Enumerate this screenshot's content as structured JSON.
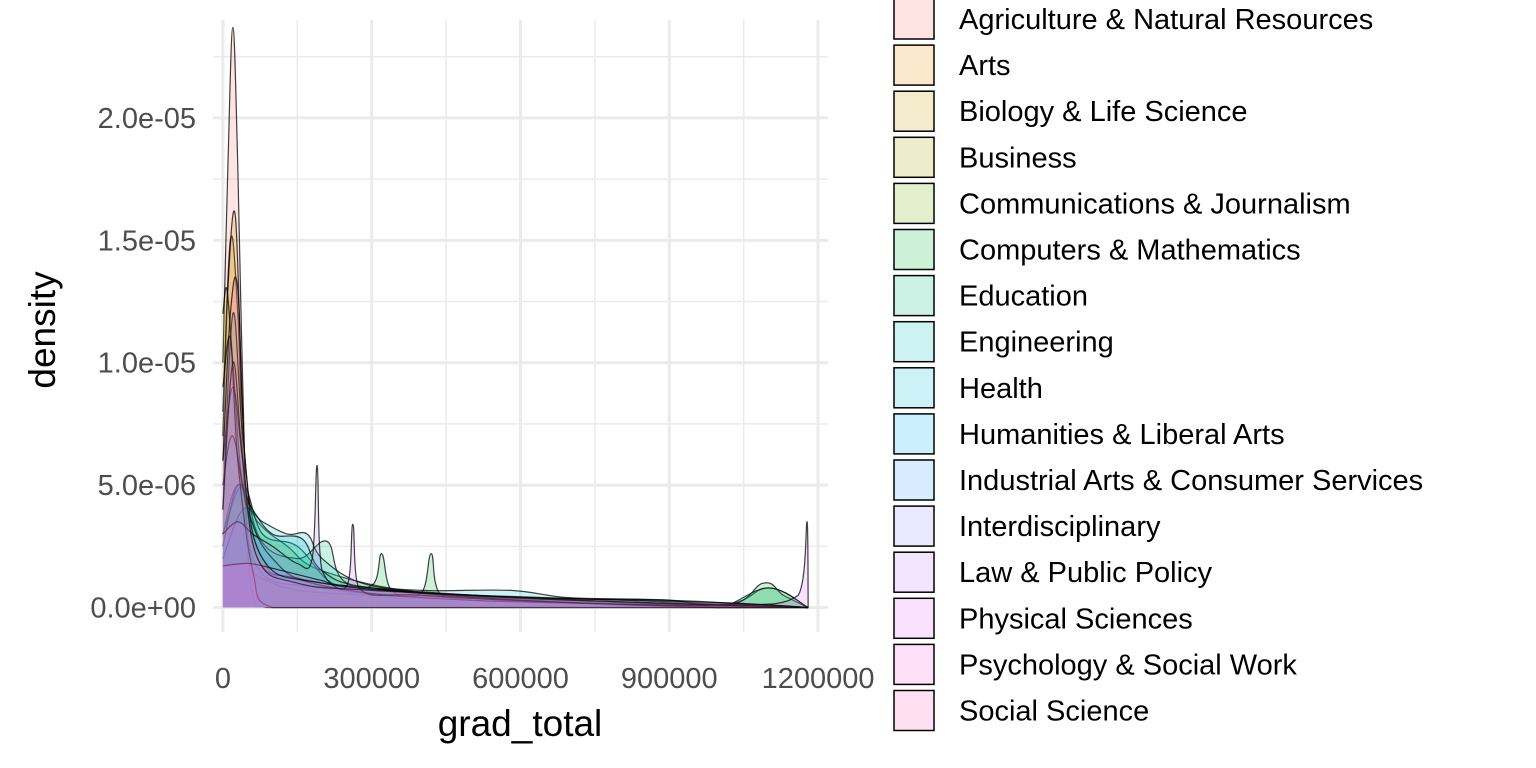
{
  "chart_data": {
    "type": "area",
    "subtype": "density",
    "title": "",
    "xlabel": "grad_total",
    "ylabel": "density",
    "xlim": [
      -20000,
      1220000
    ],
    "ylim": [
      -1e-06,
      2.4e-05
    ],
    "x_ticks": [
      0,
      300000,
      600000,
      900000,
      1200000
    ],
    "x_tick_labels": [
      "0",
      "300000",
      "600000",
      "900000",
      "1200000"
    ],
    "y_ticks": [
      0,
      5e-06,
      1e-05,
      1.5e-05,
      2e-05
    ],
    "y_tick_labels": [
      "0.0e+00",
      "5.0e-06",
      "1.0e-05",
      "1.5e-05",
      "2.0e-05"
    ],
    "grid": true,
    "fill_opacity": 0.2,
    "legend_position": "right",
    "series": [
      {
        "name": "Agriculture & Natural Resources",
        "color": "#F8766D",
        "points": [
          [
            0,
            1e-05
          ],
          [
            10000,
            1.8e-05
          ],
          [
            20000,
            2.37e-05
          ],
          [
            30000,
            1.8e-05
          ],
          [
            45000,
            5e-06
          ],
          [
            60000,
            5e-07
          ],
          [
            90000,
            0
          ],
          [
            1180000,
            0
          ]
        ]
      },
      {
        "name": "Arts",
        "color": "#E58700",
        "points": [
          [
            0,
            8e-06
          ],
          [
            15000,
            1.5e-05
          ],
          [
            30000,
            1.2e-05
          ],
          [
            50000,
            3e-06
          ],
          [
            100000,
            1e-06
          ],
          [
            300000,
            5e-07
          ],
          [
            600000,
            3e-07
          ],
          [
            1000000,
            0
          ],
          [
            1180000,
            0
          ]
        ]
      },
      {
        "name": "Biology & Life Science",
        "color": "#C99800",
        "points": [
          [
            0,
            7e-06
          ],
          [
            10000,
            1.3e-05
          ],
          [
            25000,
            1.6e-05
          ],
          [
            40000,
            8e-06
          ],
          [
            60000,
            2e-06
          ],
          [
            200000,
            8e-07
          ],
          [
            500000,
            4e-07
          ],
          [
            1180000,
            0
          ]
        ]
      },
      {
        "name": "Business",
        "color": "#A3A500",
        "points": [
          [
            0,
            1.2e-05
          ],
          [
            8000,
            1.3e-05
          ],
          [
            20000,
            1e-05
          ],
          [
            40000,
            5e-06
          ],
          [
            80000,
            2e-06
          ],
          [
            150000,
            1e-06
          ],
          [
            400000,
            6e-07
          ],
          [
            800000,
            3e-07
          ],
          [
            1180000,
            0
          ]
        ]
      },
      {
        "name": "Communications & Journalism",
        "color": "#6BB100",
        "points": [
          [
            0,
            3e-06
          ],
          [
            30000,
            5e-06
          ],
          [
            70000,
            3.5e-06
          ],
          [
            130000,
            2.5e-06
          ],
          [
            200000,
            1.5e-06
          ],
          [
            400000,
            6e-07
          ],
          [
            700000,
            3e-07
          ],
          [
            1000000,
            1e-07
          ],
          [
            1100000,
            8e-07
          ],
          [
            1180000,
            0
          ]
        ]
      },
      {
        "name": "Computers & Mathematics",
        "color": "#00BA38",
        "points": [
          [
            0,
            3e-06
          ],
          [
            40000,
            5e-06
          ],
          [
            80000,
            3e-06
          ],
          [
            150000,
            2.5e-06
          ],
          [
            220000,
            1e-06
          ],
          [
            300000,
            9e-07
          ],
          [
            320000,
            2.2e-06
          ],
          [
            340000,
            7e-07
          ],
          [
            400000,
            6e-07
          ],
          [
            420000,
            2.2e-06
          ],
          [
            440000,
            5e-07
          ],
          [
            700000,
            2e-07
          ],
          [
            1000000,
            0
          ],
          [
            1090000,
            1e-06
          ],
          [
            1130000,
            5e-07
          ],
          [
            1180000,
            0
          ]
        ]
      },
      {
        "name": "Education",
        "color": "#00BF7D",
        "points": [
          [
            0,
            4e-06
          ],
          [
            20000,
            1.2e-05
          ],
          [
            40000,
            7e-06
          ],
          [
            70000,
            3e-06
          ],
          [
            150000,
            2e-06
          ],
          [
            210000,
            2.7e-06
          ],
          [
            250000,
            1e-06
          ],
          [
            400000,
            6e-07
          ],
          [
            700000,
            3e-07
          ],
          [
            1180000,
            0
          ]
        ]
      },
      {
        "name": "Engineering",
        "color": "#00C0B8",
        "points": [
          [
            0,
            2e-06
          ],
          [
            40000,
            4e-06
          ],
          [
            80000,
            3.5e-06
          ],
          [
            130000,
            3e-06
          ],
          [
            170000,
            3e-06
          ],
          [
            200000,
            2e-06
          ],
          [
            280000,
            1e-06
          ],
          [
            400000,
            7e-07
          ],
          [
            580000,
            7e-07
          ],
          [
            700000,
            4e-07
          ],
          [
            900000,
            3e-07
          ],
          [
            1000000,
            0
          ],
          [
            1100000,
            8e-07
          ],
          [
            1180000,
            0
          ]
        ]
      },
      {
        "name": "Health",
        "color": "#00BCD8",
        "points": [
          [
            0,
            2.5e-06
          ],
          [
            30000,
            5e-06
          ],
          [
            60000,
            4e-06
          ],
          [
            100000,
            3e-06
          ],
          [
            160000,
            2.8e-06
          ],
          [
            200000,
            1.5e-06
          ],
          [
            300000,
            8e-07
          ],
          [
            600000,
            4e-07
          ],
          [
            900000,
            3e-07
          ],
          [
            1180000,
            0
          ]
        ]
      },
      {
        "name": "Humanities & Liberal Arts",
        "color": "#00B0F6",
        "points": [
          [
            0,
            6e-06
          ],
          [
            20000,
            9e-06
          ],
          [
            40000,
            6e-06
          ],
          [
            70000,
            2e-06
          ],
          [
            150000,
            1.2e-06
          ],
          [
            300000,
            8e-07
          ],
          [
            600000,
            4e-07
          ],
          [
            1000000,
            1e-07
          ],
          [
            1180000,
            0
          ]
        ]
      },
      {
        "name": "Industrial Arts & Consumer Services",
        "color": "#35A2FF",
        "points": [
          [
            0,
            5e-06
          ],
          [
            20000,
            7e-06
          ],
          [
            50000,
            4e-06
          ],
          [
            100000,
            2e-06
          ],
          [
            200000,
            9e-07
          ],
          [
            500000,
            3e-07
          ],
          [
            1180000,
            0
          ]
        ]
      },
      {
        "name": "Interdisciplinary",
        "color": "#9590FF",
        "points": [
          [
            0,
            9e-06
          ],
          [
            15000,
            1.1e-05
          ],
          [
            30000,
            6e-06
          ],
          [
            60000,
            1.5e-06
          ],
          [
            100000,
            0
          ],
          [
            1180000,
            0
          ]
        ]
      },
      {
        "name": "Law & Public Policy",
        "color": "#C77CFF",
        "points": [
          [
            0,
            3e-06
          ],
          [
            30000,
            3.5e-06
          ],
          [
            60000,
            3e-06
          ],
          [
            100000,
            2.5e-06
          ],
          [
            150000,
            1.8e-06
          ],
          [
            180000,
            2e-06
          ],
          [
            190000,
            5.8e-06
          ],
          [
            200000,
            1.5e-06
          ],
          [
            300000,
            8e-07
          ],
          [
            600000,
            3e-07
          ],
          [
            1000000,
            0
          ],
          [
            1180000,
            0
          ]
        ]
      },
      {
        "name": "Physical Sciences",
        "color": "#E76BF3",
        "points": [
          [
            0,
            1.7e-06
          ],
          [
            50000,
            1.8e-06
          ],
          [
            100000,
            1.6e-06
          ],
          [
            200000,
            1.1e-06
          ],
          [
            250000,
            9e-07
          ],
          [
            262000,
            3.4e-06
          ],
          [
            274000,
            8e-07
          ],
          [
            400000,
            5e-07
          ],
          [
            700000,
            2e-07
          ],
          [
            1000000,
            1e-07
          ],
          [
            1160000,
            5e-07
          ],
          [
            1178000,
            3.5e-06
          ],
          [
            1180000,
            0
          ]
        ]
      },
      {
        "name": "Psychology & Social Work",
        "color": "#FA62DB",
        "points": [
          [
            0,
            4e-06
          ],
          [
            20000,
            1e-05
          ],
          [
            40000,
            6e-06
          ],
          [
            70000,
            2e-06
          ],
          [
            150000,
            1e-06
          ],
          [
            300000,
            7e-07
          ],
          [
            700000,
            3e-07
          ],
          [
            1180000,
            0
          ]
        ]
      },
      {
        "name": "Social Science",
        "color": "#FF62BC",
        "points": [
          [
            0,
            6e-06
          ],
          [
            15000,
            1.2e-05
          ],
          [
            30000,
            1.3e-05
          ],
          [
            45000,
            6e-06
          ],
          [
            80000,
            2e-06
          ],
          [
            200000,
            1e-06
          ],
          [
            500000,
            5e-07
          ],
          [
            1000000,
            2e-07
          ],
          [
            1180000,
            0
          ]
        ]
      }
    ]
  }
}
